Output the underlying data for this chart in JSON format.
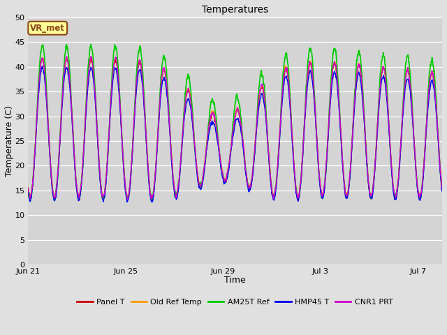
{
  "title": "Temperatures",
  "xlabel": "Time",
  "ylabel": "Temperature (C)",
  "ylim": [
    0,
    50
  ],
  "yticks": [
    0,
    5,
    10,
    15,
    20,
    25,
    30,
    35,
    40,
    45,
    50
  ],
  "background_color": "#e0e0e0",
  "plot_bg_color": "#d4d4d4",
  "grid_color": "#ffffff",
  "annotation_text": "VR_met",
  "annotation_bg": "#ffff99",
  "annotation_border": "#8B4513",
  "x_tick_labels": [
    "Jun 21",
    "Jun 25",
    "Jun 29",
    "Jul 3",
    "Jul 7"
  ],
  "x_tick_pos": [
    0,
    4,
    8,
    12,
    16
  ],
  "xlim": [
    0,
    17
  ],
  "series_names": [
    "Panel T",
    "Old Ref Temp",
    "AM25T Ref",
    "HMP45 T",
    "CNR1 PRT"
  ],
  "series_colors": [
    "#cc0000",
    "#ff9900",
    "#00cc00",
    "#0000ee",
    "#cc00cc"
  ],
  "series_lw": [
    1.0,
    1.0,
    1.2,
    1.0,
    1.0
  ],
  "num_days": 17,
  "samples_per_day": 144
}
